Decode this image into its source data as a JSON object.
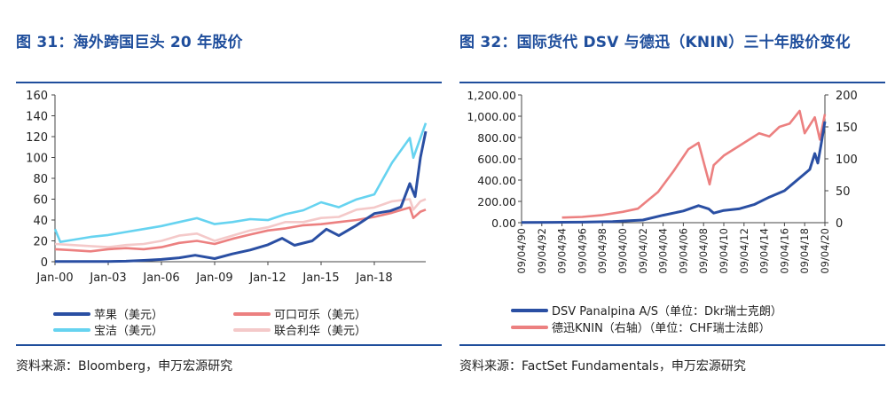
{
  "left": {
    "title": "图 31：海外跨国巨头 20 年股价",
    "source": "资料来源：Bloomberg，申万宏源研究",
    "chart_data": {
      "type": "line",
      "x_ticks": [
        "Jan-00",
        "Jan-03",
        "Jan-06",
        "Jan-09",
        "Jan-12",
        "Jan-15",
        "Jan-18"
      ],
      "y_ticks": [
        0,
        20,
        40,
        60,
        80,
        100,
        120,
        140,
        160
      ],
      "ylim": [
        0,
        160
      ],
      "xlim": [
        2000.0,
        2020.9
      ],
      "series": [
        {
          "name": "苹果（美元）",
          "color": "#2a4fa3",
          "x": [
            2000.0,
            2002.0,
            2003.0,
            2004.0,
            2005.0,
            2006.0,
            2007.0,
            2007.9,
            2009.0,
            2010.0,
            2011.0,
            2012.0,
            2012.8,
            2013.5,
            2014.5,
            2015.3,
            2016.0,
            2017.0,
            2018.0,
            2018.9,
            2019.5,
            2020.0,
            2020.3,
            2020.6,
            2020.9
          ],
          "y": [
            1,
            1,
            1,
            2,
            5,
            9,
            15,
            25,
            12,
            30,
            45,
            65,
            90,
            63,
            80,
            125,
            100,
            140,
            185,
            195,
            210,
            300,
            250,
            400,
            500
          ]
        },
        {
          "name": "宝洁（美元）",
          "color": "#66d3f0",
          "x": [
            2000.0,
            2000.3,
            2001.0,
            2002.0,
            2003.0,
            2004.0,
            2005.0,
            2006.0,
            2007.0,
            2008.0,
            2009.0,
            2010.0,
            2011.0,
            2012.0,
            2013.0,
            2014.0,
            2015.0,
            2016.0,
            2017.0,
            2018.0,
            2019.0,
            2020.0,
            2020.2,
            2020.6,
            2020.9
          ],
          "y": [
            33,
            20,
            22,
            25,
            27,
            30,
            33,
            36,
            40,
            44,
            38,
            40,
            43,
            42,
            48,
            52,
            60,
            55,
            63,
            68,
            100,
            125,
            105,
            125,
            140
          ],
          "scale": 0.72
        },
        {
          "name": "可口可乐（美元）",
          "color": "#ec8080",
          "x": [
            2000.0,
            2001.0,
            2002.0,
            2003.0,
            2004.0,
            2005.0,
            2006.0,
            2007.0,
            2008.0,
            2009.0,
            2010.0,
            2011.0,
            2012.0,
            2013.0,
            2014.0,
            2015.0,
            2016.0,
            2017.0,
            2018.0,
            2019.0,
            2020.0,
            2020.2,
            2020.6,
            2020.9
          ],
          "y": [
            12,
            11,
            10,
            12,
            13,
            12,
            14,
            18,
            20,
            17,
            22,
            26,
            30,
            32,
            35,
            36,
            38,
            40,
            43,
            47,
            52,
            42,
            48,
            50
          ]
        },
        {
          "name": "联合利华（美元）",
          "color": "#f4c9c9",
          "x": [
            2000.0,
            2001.0,
            2002.0,
            2003.0,
            2004.0,
            2005.0,
            2006.0,
            2007.0,
            2008.0,
            2009.0,
            2010.0,
            2011.0,
            2012.0,
            2013.0,
            2014.0,
            2015.0,
            2016.0,
            2017.0,
            2018.0,
            2019.0,
            2020.0,
            2020.2,
            2020.6,
            2020.9
          ],
          "y": [
            17,
            16,
            15,
            14,
            16,
            17,
            20,
            25,
            27,
            20,
            25,
            30,
            33,
            38,
            38,
            42,
            43,
            50,
            52,
            58,
            60,
            50,
            58,
            60
          ]
        }
      ]
    },
    "legend": [
      "苹果（美元）",
      "可口可乐（美元）",
      "宝洁（美元）",
      "联合利华（美元）"
    ]
  },
  "right": {
    "title": "图 32：国际货代 DSV 与德迅（KNIN）三十年股价变化",
    "source": "资料来源：FactSet Fundamentals，申万宏源研究",
    "chart_data": {
      "type": "line",
      "x_ticks": [
        "09/04/90",
        "09/04/92",
        "09/04/94",
        "09/04/96",
        "09/04/98",
        "09/04/00",
        "09/04/02",
        "09/04/04",
        "09/04/06",
        "09/04/08",
        "09/04/10",
        "09/04/12",
        "09/04/14",
        "09/04/16",
        "09/04/18",
        "09/04/20"
      ],
      "y_left_ticks": [
        "0.00",
        "200.00",
        "400.00",
        "600.00",
        "800.00",
        "1,000.00",
        "1,200.00"
      ],
      "y_right_ticks": [
        "0",
        "50",
        "100",
        "150",
        "200"
      ],
      "xlim": [
        1990.0,
        2020.0
      ],
      "ylim_left": [
        0,
        1200
      ],
      "ylim_right": [
        0,
        200
      ],
      "series": [
        {
          "name": "DSV Panalpina A/S（单位：Dkr瑞士克朗）",
          "axis": "left",
          "color": "#2a4fa3",
          "x": [
            1990.0,
            1993.0,
            1996.0,
            1999.0,
            2002.0,
            2004.0,
            2006.0,
            2007.5,
            2008.5,
            2009.0,
            2010.0,
            2011.5,
            2013.0,
            2014.5,
            2016.0,
            2017.5,
            2018.5,
            2019.0,
            2019.3,
            2019.6,
            2020.0
          ],
          "y": [
            2,
            3,
            5,
            10,
            25,
            70,
            110,
            160,
            130,
            90,
            115,
            130,
            170,
            240,
            300,
            420,
            500,
            650,
            560,
            720,
            950
          ]
        },
        {
          "name": "德迅KNIN（右轴）（单位：CHF瑞士法郎）",
          "axis": "right",
          "color": "#ec8080",
          "x": [
            1994.0,
            1996.0,
            1998.0,
            2000.0,
            2001.5,
            2002.5,
            2003.5,
            2005.0,
            2006.5,
            2007.5,
            2008.6,
            2009.0,
            2010.0,
            2011.5,
            2012.5,
            2013.5,
            2014.5,
            2015.5,
            2016.5,
            2017.5,
            2018.0,
            2019.0,
            2019.5,
            2020.0
          ],
          "y": [
            8,
            9,
            12,
            17,
            22,
            35,
            48,
            80,
            115,
            125,
            60,
            90,
            105,
            120,
            130,
            140,
            135,
            150,
            155,
            175,
            140,
            165,
            130,
            170
          ]
        }
      ]
    },
    "legend": [
      "DSV Panalpina A/S（单位：Dkr瑞士克朗）",
      "德迅KNIN（右轴）（单位：CHF瑞士法郎）"
    ]
  }
}
